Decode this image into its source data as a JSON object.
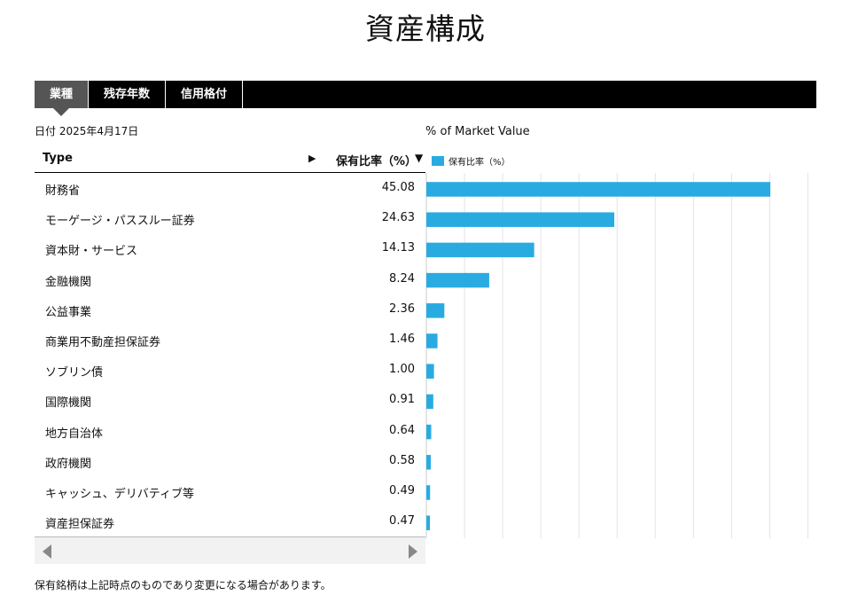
{
  "page": {
    "title": "資産構成"
  },
  "tabs": [
    {
      "label": "業種",
      "active": true
    },
    {
      "label": "残存年数",
      "active": false
    },
    {
      "label": "信用格付",
      "active": false
    }
  ],
  "date_line": "日付 2025年4月17日",
  "table": {
    "col_type": "Type",
    "col_pct": "保有比率（%）",
    "arrow_icon": "▶",
    "sort_icon": "▼",
    "rows": [
      {
        "type": "財務省",
        "value": "45.08"
      },
      {
        "type": "モーゲージ・パススルー証券",
        "value": "24.63"
      },
      {
        "type": "資本財・サービス",
        "value": "14.13"
      },
      {
        "type": "金融機関",
        "value": "8.24"
      },
      {
        "type": "公益事業",
        "value": "2.36"
      },
      {
        "type": "商業用不動産担保証券",
        "value": "1.46"
      },
      {
        "type": "ソブリン債",
        "value": "1.00"
      },
      {
        "type": "国際機関",
        "value": "0.91"
      },
      {
        "type": "地方自治体",
        "value": "0.64"
      },
      {
        "type": "政府機関",
        "value": "0.58"
      },
      {
        "type": "キャッシュ、デリバティブ等",
        "value": "0.49"
      },
      {
        "type": "資産担保証券",
        "value": "0.47"
      }
    ]
  },
  "chart": {
    "title": "% of Market Value",
    "legend_label": "保有比率（%）",
    "bar_color": "#29abe2"
  },
  "chart_data": {
    "type": "bar",
    "orientation": "horizontal",
    "title": "% of Market Value",
    "categories": [
      "財務省",
      "モーゲージ・パススルー証券",
      "資本財・サービス",
      "金融機関",
      "公益事業",
      "商業用不動産担保証券",
      "ソブリン債",
      "国際機関",
      "地方自治体",
      "政府機関",
      "キャッシュ、デリバティブ等",
      "資産担保証券"
    ],
    "series": [
      {
        "name": "保有比率（%）",
        "values": [
          45.08,
          24.63,
          14.13,
          8.24,
          2.36,
          1.46,
          1.0,
          0.91,
          0.64,
          0.58,
          0.49,
          0.47
        ]
      }
    ],
    "xlim": [
      0,
      50
    ],
    "grid": true,
    "legend": "top-left"
  },
  "footnote": "保有銘柄は上記時点のものであり変更になる場合があります。",
  "colors": {
    "tabbar": "#000000",
    "tab_active": "#555555",
    "bar": "#29abe2"
  }
}
